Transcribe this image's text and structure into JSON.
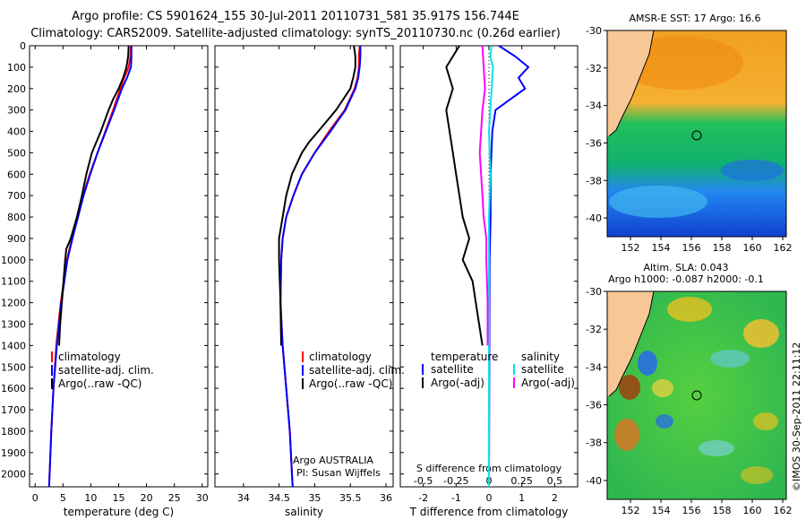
{
  "header": {
    "title_line1": "Argo profile: CS 5901624_155 30-Jul-2011 20110731_581 35.917S 156.744E",
    "title_line2": "Climatology: CARS2009. Satellite-adjusted climatology: synTS_20110730.nc (0.26d earlier)"
  },
  "credit": "©IMOS 30-Sep-2011 22:11:12",
  "colors": {
    "climatology": "#ff0000",
    "satellite": "#0000ff",
    "argo": "#000000",
    "s_satellite": "#00e5e5",
    "s_argo": "#ff00ff",
    "land": "#f7c796"
  },
  "legend_main": {
    "items": [
      "climatology",
      "satellite-adj. clim.",
      "Argo(..raw -QC)"
    ]
  },
  "legend_diff": {
    "temp_header": "temperature",
    "sal_header": "salinity",
    "temp_items": [
      "satellite",
      "Argo(-adj)"
    ],
    "sal_items": [
      "satellite",
      "Argo(-adj)"
    ]
  },
  "annotation": {
    "line1": "Argo AUSTRALIA",
    "line2": "PI: Susan Wijffels"
  },
  "sst_map": {
    "title": "AMSR-E SST: 17 Argo: 16.6",
    "yticks": [
      "-30",
      "-32",
      "-34",
      "-36",
      "-38",
      "-40"
    ],
    "xticks": [
      "152",
      "154",
      "156",
      "158",
      "160",
      "162"
    ]
  },
  "sla_map": {
    "title_line1": "Altim. SLA: 0.043",
    "title_line2": "Argo h1000: -0.087 h2000: -0.1",
    "yticks": [
      "-30",
      "-32",
      "-34",
      "-36",
      "-38",
      "-40"
    ],
    "xticks": [
      "152",
      "154",
      "156",
      "158",
      "160",
      "162"
    ]
  },
  "chart_data": [
    {
      "type": "line",
      "xlabel": "temperature (deg C)",
      "xlim": [
        -1,
        31
      ],
      "ylim": [
        2060,
        0
      ],
      "xticks": [
        "0",
        "5",
        "10",
        "15",
        "20",
        "25",
        "30"
      ],
      "yticks": [
        "0",
        "100",
        "200",
        "300",
        "400",
        "500",
        "600",
        "700",
        "800",
        "900",
        "1000",
        "1100",
        "1200",
        "1300",
        "1400",
        "1500",
        "1600",
        "1700",
        "1800",
        "1900",
        "2000"
      ],
      "series": [
        {
          "name": "climatology",
          "depth": [
            0,
            50,
            100,
            150,
            200,
            300,
            400,
            500,
            600,
            700,
            800,
            900,
            1000,
            1200,
            1400,
            1600,
            1800,
            2000,
            2060
          ],
          "values": [
            17.2,
            17.1,
            16.8,
            16.0,
            15.3,
            14.0,
            12.6,
            11.2,
            9.8,
            8.6,
            7.6,
            6.6,
            5.7,
            4.6,
            3.8,
            3.3,
            2.9,
            2.6,
            2.5
          ]
        },
        {
          "name": "satellite-adj. clim.",
          "depth": [
            0,
            50,
            100,
            150,
            200,
            300,
            400,
            500,
            600,
            700,
            800,
            900,
            1000,
            1200,
            1400,
            1600,
            1800,
            2000,
            2060
          ],
          "values": [
            17.3,
            17.3,
            17.2,
            16.5,
            15.6,
            14.2,
            12.7,
            11.2,
            9.9,
            8.7,
            7.7,
            6.7,
            5.8,
            4.7,
            3.9,
            3.3,
            2.9,
            2.6,
            2.5
          ]
        },
        {
          "name": "Argo(..raw -QC)",
          "depth": [
            0,
            50,
            100,
            150,
            200,
            250,
            300,
            400,
            500,
            600,
            700,
            800,
            900,
            950,
            1000,
            1100,
            1200,
            1300,
            1400
          ],
          "values": [
            16.8,
            16.7,
            16.4,
            15.8,
            15.0,
            14.0,
            13.2,
            11.8,
            10.2,
            9.2,
            8.4,
            7.5,
            6.4,
            5.6,
            5.4,
            5.1,
            4.8,
            4.5,
            4.3
          ]
        }
      ]
    },
    {
      "type": "line",
      "xlabel": "salinity",
      "xlim": [
        33.6,
        36.1
      ],
      "ylim": [
        2060,
        0
      ],
      "xticks": [
        "34",
        "34.5",
        "35",
        "35.5",
        "36"
      ],
      "series": [
        {
          "name": "climatology",
          "depth": [
            0,
            50,
            100,
            150,
            200,
            300,
            400,
            500,
            600,
            700,
            800,
            900,
            1000,
            1200,
            1400,
            1600,
            1800,
            2000,
            2060
          ],
          "values": [
            35.63,
            35.62,
            35.62,
            35.6,
            35.56,
            35.42,
            35.2,
            35.0,
            34.82,
            34.7,
            34.6,
            34.55,
            34.53,
            34.52,
            34.55,
            34.6,
            34.65,
            34.68,
            34.69
          ]
        },
        {
          "name": "satellite-adj. clim.",
          "depth": [
            0,
            50,
            100,
            150,
            200,
            300,
            400,
            500,
            600,
            700,
            800,
            900,
            1000,
            1200,
            1400,
            1600,
            1800,
            2000,
            2060
          ],
          "values": [
            35.64,
            35.64,
            35.63,
            35.61,
            35.57,
            35.43,
            35.22,
            35.0,
            34.82,
            34.7,
            34.6,
            34.55,
            34.53,
            34.52,
            34.55,
            34.6,
            34.65,
            34.68,
            34.69
          ]
        },
        {
          "name": "Argo(..raw -QC)",
          "depth": [
            0,
            50,
            100,
            150,
            200,
            300,
            400,
            450,
            500,
            600,
            700,
            800,
            900,
            1000,
            1100,
            1200,
            1400
          ],
          "values": [
            35.55,
            35.57,
            35.57,
            35.54,
            35.5,
            35.3,
            35.05,
            34.92,
            34.82,
            34.68,
            34.6,
            34.55,
            34.5,
            34.5,
            34.51,
            34.52,
            34.53
          ]
        }
      ]
    },
    {
      "type": "line",
      "xlabel": "T difference from climatology",
      "title": "S difference from climatology",
      "xlim": [
        -2.7,
        2.7
      ],
      "ylim": [
        2060,
        0
      ],
      "xticks": [
        "-2",
        "-1",
        "0",
        "1",
        "2"
      ],
      "top_xticks": [
        "-0.5",
        "-0.25",
        "0",
        "0.25",
        "0.5"
      ],
      "series": [
        {
          "name": "temperature satellite",
          "depth": [
            0,
            50,
            100,
            150,
            200,
            300,
            400,
            600,
            800,
            1000,
            1500,
            2060
          ],
          "values": [
            0.3,
            0.8,
            1.2,
            0.9,
            1.1,
            0.2,
            0.1,
            0.05,
            0.05,
            0.02,
            0.01,
            0.0
          ]
        },
        {
          "name": "temperature Argo(-adj)",
          "depth": [
            0,
            100,
            200,
            300,
            400,
            500,
            600,
            700,
            800,
            900,
            1000,
            1100,
            1200,
            1300,
            1400
          ],
          "values": [
            -0.9,
            -1.3,
            -1.1,
            -1.3,
            -1.2,
            -1.1,
            -1.0,
            -0.9,
            -0.8,
            -0.6,
            -0.8,
            -0.5,
            -0.4,
            -0.3,
            -0.2
          ]
        },
        {
          "name": "salinity satellite",
          "depth": [
            0,
            50,
            100,
            200,
            300,
            400,
            600,
            800,
            1000,
            2060
          ],
          "values": [
            0.02,
            0.01,
            0.03,
            0.02,
            0.01,
            0.0,
            0.01,
            0.0,
            0.0,
            0.0
          ]
        },
        {
          "name": "salinity Argo(-adj)",
          "depth": [
            0,
            100,
            200,
            300,
            400,
            500,
            600,
            700,
            800,
            900,
            1000,
            1200,
            1400
          ],
          "values": [
            -0.05,
            -0.04,
            -0.03,
            -0.05,
            -0.06,
            -0.07,
            -0.06,
            -0.05,
            -0.04,
            -0.02,
            -0.02,
            -0.01,
            -0.01
          ]
        }
      ]
    }
  ]
}
